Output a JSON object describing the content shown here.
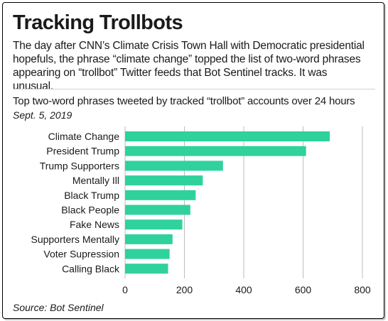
{
  "headline": "Tracking Trollbots",
  "dek": "The day after CNN’s Climate Crisis Town Hall with Democratic presidential hopefuls, the phrase “climate change” topped the list of two-word phrases appearing on “trollbot” Twitter feeds that Bot Sentinel tracks. It was unusual.",
  "colors": {
    "bar": "#2fd29c",
    "grid": "#bdbdbd"
  },
  "chart_data": {
    "type": "bar",
    "orientation": "horizontal",
    "title": "Top two-word phrases tweeted by tracked “trollbot” accounts over 24 hours",
    "subtitle": "Sept. 5, 2019",
    "categories": [
      "Climate Change",
      "President Trump",
      "Trump Supporters",
      "Mentally Ill",
      "Black Trump",
      "Black People",
      "Fake News",
      "Supporters Mentally",
      "Voter Supression",
      "Calling Black"
    ],
    "values": [
      690,
      610,
      330,
      262,
      238,
      220,
      193,
      160,
      150,
      145
    ],
    "xlim": [
      0,
      800
    ],
    "xticks": [
      0,
      200,
      400,
      600,
      800
    ],
    "grid": true
  },
  "source": "Source: Bot Sentinel"
}
